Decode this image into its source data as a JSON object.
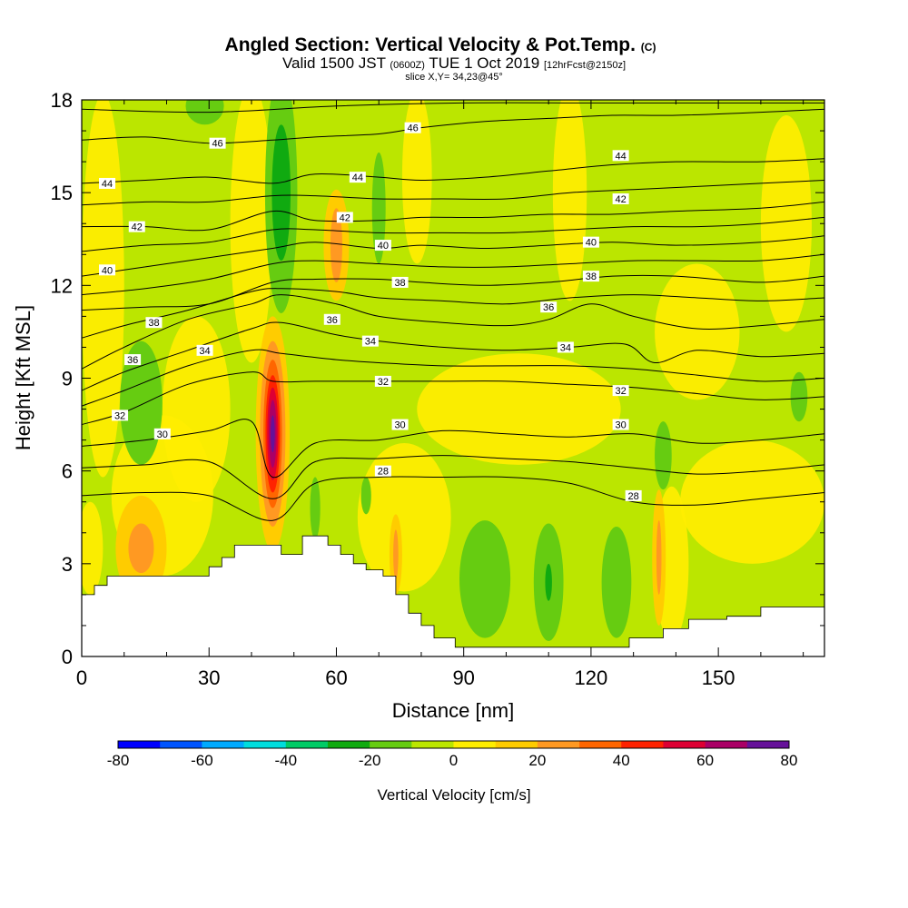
{
  "chart_data": {
    "type": "heatmap",
    "title": "Angled Section: Vertical Velocity & Pot.Temp.",
    "title_unit": "(C)",
    "valid_prefix": "Valid 1500 JST",
    "valid_utc": "(0600Z)",
    "valid_date": "TUE 1 Oct 2019",
    "forecast": "[12hrFcst@2150z]",
    "slice": "slice X,Y= 34,23@45°",
    "xlabel": "Distance [nm]",
    "ylabel": "Height [Kft MSL]",
    "xlim": [
      0,
      175
    ],
    "ylim": [
      0,
      18
    ],
    "x_ticks": [
      0,
      30,
      60,
      90,
      120,
      150
    ],
    "y_ticks": [
      0,
      3,
      6,
      9,
      12,
      15,
      18
    ],
    "colorbar": {
      "label": "Vertical Velocity [cm/s]",
      "min": -80,
      "max": 80,
      "step": 10,
      "tick_values": [
        -80,
        -60,
        -40,
        -20,
        0,
        20,
        40,
        60,
        80
      ],
      "colors": [
        "#0000ff",
        "#0055ff",
        "#00aaff",
        "#00dddd",
        "#00cc66",
        "#10aa10",
        "#66cc11",
        "#bbe600",
        "#ffee00",
        "#ffcc00",
        "#ff9922",
        "#ff6600",
        "#ff2200",
        "#dd0033",
        "#aa0066",
        "#661199"
      ]
    },
    "background_color": "#bbe600",
    "velocity_features": [
      {
        "kind": "updraft core",
        "x": 45,
        "y": 7.2,
        "peak": 70,
        "levels": [
          {
            "value": 10,
            "rx": 4.0,
            "ry": 3.8
          },
          {
            "value": 20,
            "rx": 3.0,
            "ry": 3.0
          },
          {
            "value": 30,
            "rx": 2.2,
            "ry": 2.4
          },
          {
            "value": 40,
            "rx": 1.7,
            "ry": 1.9
          },
          {
            "value": 50,
            "rx": 1.3,
            "ry": 1.5
          },
          {
            "value": 60,
            "rx": 0.9,
            "ry": 1.1
          },
          {
            "value": 70,
            "rx": 0.5,
            "ry": 0.6
          }
        ]
      },
      {
        "kind": "downdraft column",
        "x": 47,
        "y": 15.0,
        "peak": -20,
        "levels": [
          {
            "value": -10,
            "rx": 3.8,
            "ry": 3.9
          },
          {
            "value": -20,
            "rx": 2.2,
            "ry": 2.2
          }
        ]
      },
      {
        "kind": "downdraft",
        "x": 70,
        "y": 14.5,
        "peak": -10,
        "levels": [
          {
            "value": -10,
            "rx": 1.6,
            "ry": 1.8
          }
        ]
      },
      {
        "kind": "updraft",
        "x": 60,
        "y": 13.3,
        "peak": 20,
        "levels": [
          {
            "value": 10,
            "rx": 3.0,
            "ry": 1.8
          },
          {
            "value": 20,
            "rx": 1.4,
            "ry": 1.2
          }
        ]
      },
      {
        "kind": "updraft",
        "x": 14,
        "y": 3.5,
        "peak": 20,
        "levels": [
          {
            "value": 10,
            "rx": 6.0,
            "ry": 1.7
          },
          {
            "value": 20,
            "rx": 3.0,
            "ry": 0.8
          }
        ]
      },
      {
        "kind": "downdraft",
        "x": 14,
        "y": 8.2,
        "peak": -10,
        "levels": [
          {
            "value": -10,
            "rx": 5.0,
            "ry": 2.0
          }
        ]
      },
      {
        "kind": "downdraft",
        "x": 95,
        "y": 2.5,
        "peak": -10,
        "levels": [
          {
            "value": -10,
            "rx": 6.0,
            "ry": 1.9
          }
        ]
      },
      {
        "kind": "downdraft",
        "x": 110,
        "y": 2.4,
        "peak": -20,
        "levels": [
          {
            "value": -10,
            "rx": 3.5,
            "ry": 1.9
          },
          {
            "value": -20,
            "rx": 0.8,
            "ry": 0.6
          }
        ]
      },
      {
        "kind": "downdraft",
        "x": 126,
        "y": 2.4,
        "peak": -10,
        "levels": [
          {
            "value": -10,
            "rx": 3.5,
            "ry": 1.8
          }
        ]
      },
      {
        "kind": "downdraft",
        "x": 137,
        "y": 6.5,
        "peak": -10,
        "levels": [
          {
            "value": -10,
            "rx": 2.0,
            "ry": 1.1
          }
        ]
      },
      {
        "kind": "downdraft",
        "x": 169,
        "y": 8.4,
        "peak": -10,
        "levels": [
          {
            "value": -10,
            "rx": 2.0,
            "ry": 0.8
          }
        ]
      },
      {
        "kind": "downdraft",
        "x": 29,
        "y": 17.8,
        "peak": -10,
        "levels": [
          {
            "value": -10,
            "rx": 4.5,
            "ry": 0.6
          }
        ]
      },
      {
        "kind": "downdraft",
        "x": 55,
        "y": 4.8,
        "peak": -10,
        "levels": [
          {
            "value": -10,
            "rx": 1.2,
            "ry": 1.0
          }
        ]
      },
      {
        "kind": "downdraft",
        "x": 67,
        "y": 5.2,
        "peak": -10,
        "levels": [
          {
            "value": -10,
            "rx": 1.2,
            "ry": 0.6
          }
        ]
      },
      {
        "kind": "updraft",
        "x": 74,
        "y": 3.3,
        "peak": 20,
        "levels": [
          {
            "value": 10,
            "rx": 1.5,
            "ry": 1.3
          },
          {
            "value": 20,
            "rx": 0.6,
            "ry": 0.8
          }
        ]
      },
      {
        "kind": "updraft",
        "x": 136,
        "y": 3.2,
        "peak": 20,
        "levels": [
          {
            "value": 10,
            "rx": 1.6,
            "ry": 2.2
          },
          {
            "value": 20,
            "rx": 0.6,
            "ry": 1.2
          }
        ]
      }
    ],
    "zero_regions": [
      {
        "x": 5,
        "y": 12.0,
        "rx": 5.0,
        "ry": 6.2
      },
      {
        "x": 19,
        "y": 5.2,
        "rx": 12.0,
        "ry": 2.6
      },
      {
        "x": 27,
        "y": 8.0,
        "rx": 8.0,
        "ry": 3.0
      },
      {
        "x": 40,
        "y": 14.0,
        "rx": 5.0,
        "ry": 4.5
      },
      {
        "x": 76,
        "y": 4.5,
        "rx": 11.0,
        "ry": 2.4
      },
      {
        "x": 79,
        "y": 15.5,
        "rx": 3.5,
        "ry": 2.8
      },
      {
        "x": 103,
        "y": 8.0,
        "rx": 24.0,
        "ry": 1.8
      },
      {
        "x": 115,
        "y": 15.0,
        "rx": 4.0,
        "ry": 3.5
      },
      {
        "x": 145,
        "y": 10.5,
        "rx": 10.0,
        "ry": 2.2
      },
      {
        "x": 158,
        "y": 5.0,
        "rx": 17.0,
        "ry": 2.0
      },
      {
        "x": 166,
        "y": 14.0,
        "rx": 6.0,
        "ry": 3.5
      },
      {
        "x": 139,
        "y": 3.0,
        "rx": 4.0,
        "ry": 2.5
      },
      {
        "x": 2,
        "y": 3.5,
        "rx": 3.0,
        "ry": 1.5
      }
    ],
    "terrain": {
      "x": [
        0,
        3,
        3,
        6,
        6,
        30,
        30,
        33,
        33,
        36,
        36,
        40,
        40,
        47,
        47,
        52,
        52,
        58,
        58,
        61,
        61,
        64,
        64,
        67,
        67,
        71,
        71,
        74,
        74,
        77,
        77,
        80,
        80,
        83,
        83,
        88,
        88,
        93,
        93,
        110,
        110,
        129,
        129,
        137,
        137,
        143,
        143,
        152,
        152,
        160,
        160,
        175
      ],
      "y": [
        2.0,
        2.0,
        2.3,
        2.3,
        2.6,
        2.6,
        2.9,
        2.9,
        3.2,
        3.2,
        3.6,
        3.6,
        3.6,
        3.6,
        3.3,
        3.3,
        3.9,
        3.9,
        3.6,
        3.6,
        3.3,
        3.3,
        3.0,
        3.0,
        2.8,
        2.8,
        2.6,
        2.6,
        2.0,
        2.0,
        1.4,
        1.4,
        1.0,
        1.0,
        0.6,
        0.6,
        0.3,
        0.3,
        0.3,
        0.3,
        0.3,
        0.3,
        0.6,
        0.6,
        0.9,
        0.9,
        1.2,
        1.2,
        1.3,
        1.3,
        1.6,
        1.6
      ]
    },
    "theta_contours": [
      {
        "label": "28",
        "x": [
          0,
          15,
          30,
          45,
          55,
          70,
          85,
          100,
          115,
          130,
          145,
          160,
          175
        ],
        "y": [
          5.2,
          5.3,
          5.2,
          4.4,
          5.6,
          5.8,
          5.8,
          5.8,
          5.6,
          5.0,
          4.9,
          5.1,
          5.3
        ],
        "label_at": [
          {
            "x": 71,
            "y": 6.0
          },
          {
            "x": 130,
            "y": 5.2
          }
        ]
      },
      {
        "label": "30",
        "x": [
          0,
          15,
          30,
          40,
          45,
          55,
          70,
          85,
          100,
          115,
          130,
          145,
          160,
          175
        ],
        "y": [
          6.8,
          7.0,
          7.3,
          7.6,
          5.8,
          6.9,
          7.0,
          7.3,
          7.2,
          7.1,
          7.2,
          6.9,
          7.0,
          7.2
        ],
        "label_at": [
          {
            "x": 19,
            "y": 7.2
          },
          {
            "x": 75,
            "y": 7.5
          },
          {
            "x": 127,
            "y": 7.5
          }
        ]
      },
      {
        "label": "32",
        "x": [
          0,
          10,
          25,
          40,
          45,
          55,
          70,
          85,
          100,
          115,
          130,
          145,
          160,
          175
        ],
        "y": [
          7.5,
          7.9,
          8.8,
          9.2,
          8.9,
          8.9,
          8.9,
          8.9,
          8.9,
          8.8,
          8.7,
          8.5,
          8.3,
          8.4
        ],
        "label_at": [
          {
            "x": 9,
            "y": 7.8
          },
          {
            "x": 71,
            "y": 8.9
          },
          {
            "x": 127,
            "y": 8.6
          }
        ]
      },
      {
        "label": "34",
        "x": [
          0,
          10,
          25,
          40,
          47,
          60,
          70,
          85,
          100,
          115,
          128,
          135,
          145,
          160,
          175
        ],
        "y": [
          8.6,
          9.2,
          9.9,
          10.6,
          10.8,
          10.4,
          10.2,
          10.0,
          9.9,
          10.0,
          10.1,
          9.5,
          9.9,
          9.7,
          9.8
        ],
        "label_at": [
          {
            "x": 29,
            "y": 9.9
          },
          {
            "x": 68,
            "y": 10.2
          },
          {
            "x": 114,
            "y": 10.0
          }
        ]
      },
      {
        "label": "36",
        "x": [
          0,
          10,
          25,
          40,
          47,
          60,
          70,
          85,
          100,
          110,
          120,
          130,
          145,
          160,
          175
        ],
        "y": [
          9.3,
          10.0,
          10.9,
          11.4,
          11.7,
          11.4,
          11.0,
          10.8,
          10.7,
          10.9,
          11.4,
          11.0,
          10.6,
          10.7,
          10.9
        ],
        "label_at": [
          {
            "x": 12,
            "y": 9.6
          },
          {
            "x": 59,
            "y": 10.9
          },
          {
            "x": 110,
            "y": 11.3
          }
        ]
      },
      {
        "label": "38",
        "x": [
          0,
          15,
          30,
          45,
          55,
          70,
          80,
          95,
          110,
          125,
          140,
          160,
          175
        ],
        "y": [
          11.2,
          11.3,
          11.4,
          12.1,
          12.2,
          12.2,
          12.1,
          12.0,
          12.1,
          12.3,
          12.3,
          12.1,
          12.3
        ],
        "label_at": [
          {
            "x": 17,
            "y": 10.8
          },
          {
            "x": 75,
            "y": 12.1
          },
          {
            "x": 120,
            "y": 12.3
          }
        ]
      },
      {
        "label": "40",
        "x": [
          0,
          15,
          30,
          45,
          55,
          70,
          80,
          95,
          110,
          125,
          140,
          160,
          175
        ],
        "y": [
          12.3,
          12.6,
          12.9,
          13.2,
          13.4,
          13.2,
          13.3,
          13.2,
          13.3,
          13.4,
          13.3,
          13.4,
          13.6
        ],
        "label_at": [
          {
            "x": 6,
            "y": 12.5
          },
          {
            "x": 71,
            "y": 13.3
          },
          {
            "x": 120,
            "y": 13.4
          }
        ]
      },
      {
        "label": "42",
        "x": [
          0,
          15,
          30,
          45,
          55,
          70,
          80,
          95,
          110,
          125,
          140,
          160,
          175
        ],
        "y": [
          13.9,
          13.9,
          13.8,
          14.4,
          14.1,
          14.1,
          14.2,
          14.2,
          14.3,
          14.3,
          14.4,
          14.5,
          14.7
        ],
        "label_at": [
          {
            "x": 13,
            "y": 13.9
          },
          {
            "x": 62,
            "y": 14.2
          },
          {
            "x": 127,
            "y": 14.8
          }
        ]
      },
      {
        "label": "44",
        "x": [
          0,
          15,
          30,
          45,
          55,
          70,
          80,
          95,
          110,
          125,
          140,
          160,
          175
        ],
        "y": [
          15.3,
          15.4,
          15.5,
          15.3,
          15.6,
          15.5,
          15.4,
          15.5,
          15.7,
          15.9,
          16.0,
          16.0,
          16.1
        ],
        "label_at": [
          {
            "x": 6,
            "y": 15.3
          },
          {
            "x": 65,
            "y": 15.5
          },
          {
            "x": 127,
            "y": 16.2
          }
        ]
      },
      {
        "label": "46",
        "x": [
          0,
          15,
          30,
          45,
          55,
          70,
          80,
          95,
          110,
          125,
          140,
          160,
          175
        ],
        "y": [
          16.7,
          16.8,
          16.6,
          16.7,
          16.8,
          16.9,
          17.1,
          17.3,
          17.4,
          17.5,
          17.5,
          17.6,
          17.7
        ],
        "label_at": [
          {
            "x": 32,
            "y": 16.6
          },
          {
            "x": 78,
            "y": 17.1
          }
        ]
      },
      {
        "label": "",
        "x": [
          0,
          30,
          60,
          90,
          120,
          150,
          175
        ],
        "y": [
          17.7,
          17.6,
          17.8,
          17.9,
          17.9,
          17.9,
          17.9
        ],
        "label_at": []
      },
      {
        "label": "",
        "x": [
          0,
          15,
          30,
          45,
          55,
          70,
          85,
          100,
          115,
          130,
          145,
          160,
          175
        ],
        "y": [
          14.6,
          14.7,
          14.7,
          14.9,
          14.9,
          14.8,
          14.8,
          14.8,
          15.0,
          15.1,
          15.2,
          15.3,
          15.4
        ],
        "label_at": []
      },
      {
        "label": "",
        "x": [
          0,
          15,
          30,
          45,
          55,
          70,
          85,
          100,
          115,
          130,
          145,
          160,
          175
        ],
        "y": [
          13.1,
          13.3,
          13.4,
          13.8,
          13.8,
          13.7,
          13.7,
          13.7,
          13.8,
          13.9,
          13.9,
          14.0,
          14.2
        ],
        "label_at": []
      },
      {
        "label": "",
        "x": [
          0,
          15,
          30,
          45,
          55,
          70,
          85,
          100,
          115,
          130,
          145,
          160,
          175
        ],
        "y": [
          11.7,
          11.9,
          12.2,
          12.7,
          12.8,
          12.7,
          12.6,
          12.6,
          12.7,
          12.8,
          12.8,
          12.8,
          13.0
        ],
        "label_at": []
      },
      {
        "label": "",
        "x": [
          0,
          10,
          25,
          40,
          47,
          60,
          70,
          85,
          100,
          115,
          130,
          145,
          160,
          175
        ],
        "y": [
          10.3,
          10.7,
          11.2,
          11.8,
          11.9,
          11.8,
          11.6,
          11.5,
          11.4,
          11.6,
          11.7,
          11.6,
          11.5,
          11.6
        ],
        "label_at": []
      },
      {
        "label": "",
        "x": [
          0,
          10,
          25,
          40,
          47,
          60,
          70,
          85,
          100,
          115,
          130,
          145,
          160,
          175
        ],
        "y": [
          8.1,
          8.6,
          9.4,
          9.9,
          9.8,
          9.6,
          9.5,
          9.4,
          9.4,
          9.4,
          9.3,
          9.1,
          8.9,
          9.0
        ],
        "label_at": []
      },
      {
        "label": "",
        "x": [
          0,
          15,
          30,
          45,
          55,
          70,
          85,
          100,
          115,
          130,
          145,
          160,
          175
        ],
        "y": [
          6.1,
          6.2,
          6.3,
          5.1,
          6.3,
          6.4,
          6.5,
          6.4,
          6.3,
          6.1,
          5.9,
          6.0,
          6.2
        ],
        "label_at": []
      }
    ]
  }
}
